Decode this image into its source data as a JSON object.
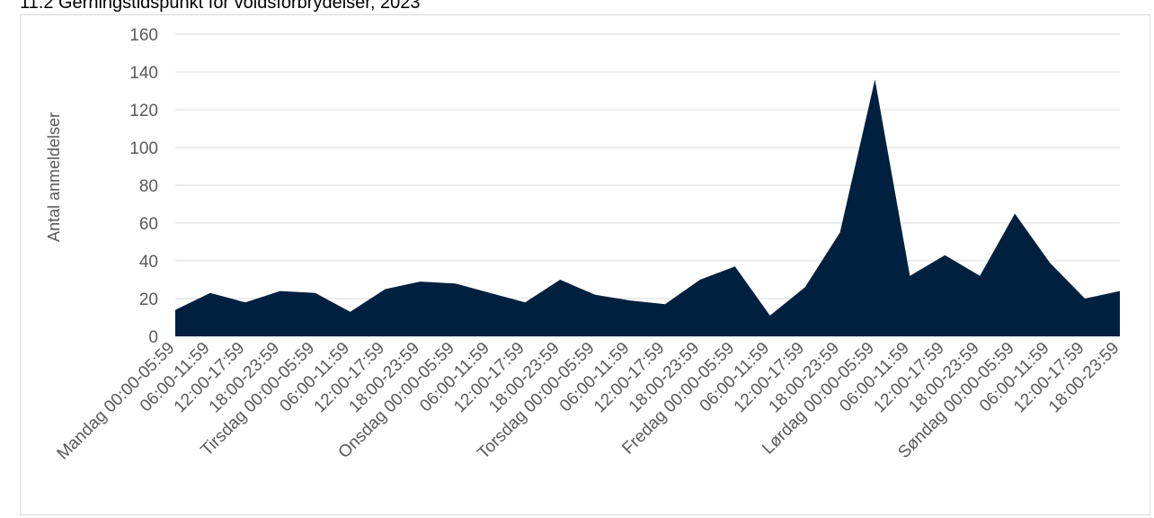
{
  "title": "11.2 Gerningstidspunkt for voldsforbrydelser, 2023",
  "chart_data": {
    "type": "area",
    "ylabel": "Antal anmeldelser",
    "xlabel": "",
    "ylim": [
      0,
      160
    ],
    "yticks": [
      0,
      20,
      40,
      60,
      80,
      100,
      120,
      140,
      160
    ],
    "grid": true,
    "legend": "none",
    "fill_color": "#00203f",
    "categories": [
      "Mandag 00:00-05:59",
      "06:00-11:59",
      "12:00-17:59",
      "18:00-23:59",
      "Tirsdag 00:00-05:59",
      "06:00-11:59",
      "12:00-17:59",
      "18:00-23:59",
      "Onsdag 00:00-05:59",
      "06:00-11:59",
      "12:00-17:59",
      "18:00-23:59",
      "Torsdag 00:00-05:59",
      "06:00-11:59",
      "12:00-17:59",
      "18:00-23:59",
      "Fredag 00:00-05:59",
      "06:00-11:59",
      "12:00-17:59",
      "18:00-23:59",
      "Lørdag 00:00-05:59",
      "06:00-11:59",
      "12:00-17:59",
      "18:00-23:59",
      "Søndag 00:00-05:59",
      "06:00-11:59",
      "12:00-17:59",
      "18:00-23:59"
    ],
    "values": [
      14,
      23,
      18,
      24,
      23,
      13,
      25,
      29,
      28,
      23,
      18,
      30,
      22,
      19,
      17,
      30,
      37,
      11,
      26,
      55,
      136,
      32,
      43,
      32,
      65,
      39,
      20,
      24
    ]
  }
}
